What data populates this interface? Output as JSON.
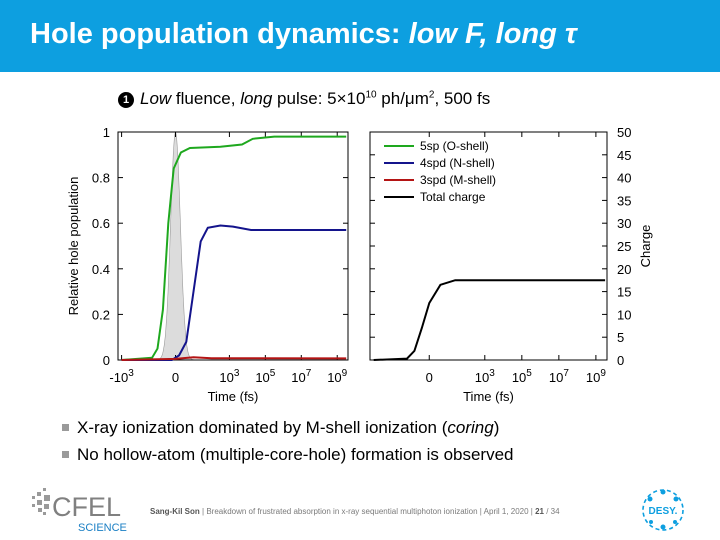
{
  "slide": {
    "title_main": "Hole population dynamics: ",
    "title_italic": "low F, long τ",
    "subtitle_num": "1",
    "subtitle_parts": {
      "a": "Low",
      "b": " fluence, ",
      "c": "long",
      "d": " pulse: 5×10",
      "e": "10",
      "f": " ph/μm",
      "g": "2",
      "h": ", 500 fs"
    },
    "bullets": [
      {
        "pre": "X-ray ionization dominated by M-shell ionization (",
        "italic": "coring",
        "post": ")"
      },
      {
        "pre": "No hollow-atom (multiple-core-hole) formation is observed"
      }
    ],
    "footer": {
      "author": "Sang-Kil Son",
      "sep1": "  |  ",
      "text": "Breakdown of frustrated absorption in x-ray sequential multiphoton ionization | April 1, 2020 | ",
      "page": "21",
      "total": " / 34"
    },
    "logo_cfel": "CFEL",
    "logo_science": "SCIENCE",
    "logo_desy": "DESY."
  },
  "colors": {
    "title_bg": "#0d9fe0",
    "green": "#1ea81e",
    "navy": "#14148c",
    "red": "#b41414",
    "black": "#000000",
    "pulse": "#dcdcdc"
  },
  "chart_data": [
    {
      "type": "line",
      "title": "",
      "xlabel": "Time (fs)",
      "ylabel": "Relative hole population",
      "x_scale": "symlog",
      "x_tick_labels": [
        "-10^3",
        "0",
        "10^3",
        "10^5",
        "10^7",
        "10^9"
      ],
      "ylim": [
        0,
        1
      ],
      "y_ticks": [
        "0",
        "0.2",
        "0.4",
        "0.6",
        "0.8",
        "1"
      ],
      "series": [
        {
          "name": "5sp (O-shell)",
          "color": "#1ea81e",
          "points": [
            [
              -3.0,
              0.0
            ],
            [
              -1.3,
              0.01
            ],
            [
              -1.0,
              0.05
            ],
            [
              -0.7,
              0.22
            ],
            [
              -0.4,
              0.6
            ],
            [
              -0.1,
              0.84
            ],
            [
              0.3,
              0.91
            ],
            [
              0.8,
              0.93
            ],
            [
              2.5,
              0.935
            ],
            [
              3.7,
              0.945
            ],
            [
              4.3,
              0.97
            ],
            [
              5.5,
              0.98
            ],
            [
              9.5,
              0.98
            ]
          ]
        },
        {
          "name": "4spd (N-shell)",
          "color": "#14148c",
          "points": [
            [
              -3.0,
              0.0
            ],
            [
              -0.2,
              0.0
            ],
            [
              0.2,
              0.02
            ],
            [
              0.6,
              0.08
            ],
            [
              1.0,
              0.3
            ],
            [
              1.4,
              0.52
            ],
            [
              1.8,
              0.58
            ],
            [
              2.5,
              0.59
            ],
            [
              3.2,
              0.585
            ],
            [
              4.2,
              0.57
            ],
            [
              9.5,
              0.57
            ]
          ]
        },
        {
          "name": "3spd (M-shell)",
          "color": "#b41414",
          "points": [
            [
              -3.0,
              0.0
            ],
            [
              0.0,
              0.005
            ],
            [
              1.0,
              0.012
            ],
            [
              2.0,
              0.008
            ],
            [
              9.5,
              0.007
            ]
          ]
        }
      ],
      "pulse": {
        "peak_x": 0.0,
        "peak_y": 1.0
      }
    },
    {
      "type": "line",
      "title": "",
      "xlabel": "Time (fs)",
      "ylabel": "Charge",
      "x_scale": "symlog",
      "x_tick_labels": [
        "0",
        "10^3",
        "10^5",
        "10^7",
        "10^9"
      ],
      "ylim": [
        0,
        50
      ],
      "y_ticks": [
        "0",
        "5",
        "10",
        "15",
        "20",
        "25",
        "30",
        "35",
        "40",
        "45",
        "50"
      ],
      "legend": {
        "placement": "top-left"
      },
      "series": [
        {
          "name": "Total charge",
          "color": "#000000",
          "points": [
            [
              -3.0,
              0.0
            ],
            [
              -1.2,
              0.3
            ],
            [
              -0.8,
              2.0
            ],
            [
              -0.4,
              7.0
            ],
            [
              0.0,
              12.5
            ],
            [
              0.6,
              16.5
            ],
            [
              1.4,
              17.5
            ],
            [
              9.5,
              17.5
            ]
          ]
        }
      ]
    }
  ]
}
